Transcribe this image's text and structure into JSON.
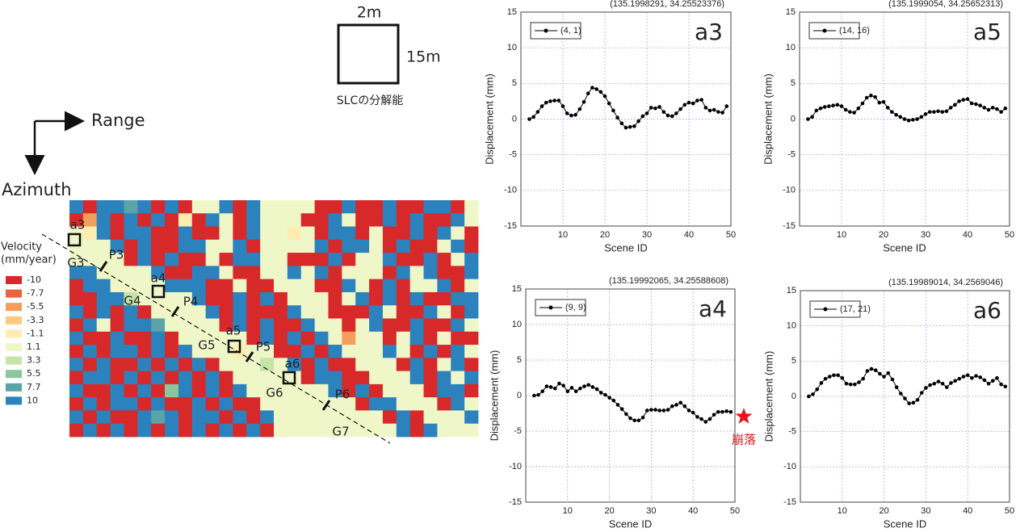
{
  "chart_data": [
    {
      "type": "heatmap",
      "legend_title": [
        "Velocity",
        "(mm/year)"
      ],
      "legend_values": [
        -10,
        -7.7,
        -5.5,
        -3.3,
        -1.1,
        1.1,
        3.3,
        5.5,
        7.7,
        10
      ],
      "colors": [
        "#d7282a",
        "#e8643f",
        "#f59d5a",
        "#fcc981",
        "#fdedb0",
        "#eff6c8",
        "#c6e4a8",
        "#8cc79b",
        "#5aa3a8",
        "#2c82bd"
      ],
      "annotations": {
        "range": "Range",
        "azimuth": "Azimuth",
        "resolution_width": "2m",
        "resolution_height": "15m",
        "resolution_caption": "SLCの分解能",
        "points": [
          "a3",
          "a4",
          "a5",
          "a6"
        ],
        "groups": [
          "G3",
          "G4",
          "G5",
          "G6",
          "G7"
        ],
        "profiles": [
          "P3",
          "P4",
          "P5",
          "P6"
        ]
      },
      "values": [
        [
          10,
          -10,
          10,
          10,
          7.7,
          10,
          -10,
          10,
          -10,
          1.1,
          1.1,
          10,
          -10,
          10,
          1.1,
          1.1,
          1.1,
          1.1,
          -10,
          -10,
          10,
          -10,
          -10,
          10,
          -10,
          -10,
          10,
          10,
          -10,
          1.1
        ],
        [
          -10,
          -5.5,
          10,
          -10,
          10,
          -10,
          10,
          -10,
          -1.1,
          -10,
          10,
          1.1,
          -10,
          10,
          1.1,
          1.1,
          1.1,
          -10,
          -10,
          10,
          1.1,
          -10,
          -10,
          10,
          -10,
          10,
          -10,
          -10,
          10,
          1.1
        ],
        [
          1.1,
          -1.1,
          10,
          -10,
          10,
          10,
          -10,
          -10,
          10,
          -10,
          -10,
          1.1,
          -10,
          10,
          1.1,
          1.1,
          -1.1,
          1.1,
          -10,
          10,
          10,
          -10,
          1.1,
          -10,
          -10,
          10,
          -10,
          10,
          1.1,
          -10
        ],
        [
          1.1,
          1.1,
          1.1,
          10,
          -10,
          10,
          -10,
          -10,
          10,
          10,
          1.1,
          1.1,
          10,
          -10,
          1.1,
          1.1,
          1.1,
          1.1,
          10,
          -10,
          10,
          10,
          1.1,
          -10,
          10,
          -10,
          -10,
          1.1,
          10,
          -10
        ],
        [
          1.1,
          1.1,
          1.1,
          1.1,
          -10,
          10,
          -10,
          10,
          -10,
          -10,
          1.1,
          -10,
          10,
          10,
          1.1,
          1.1,
          -10,
          -10,
          -10,
          10,
          -10,
          1.1,
          1.1,
          10,
          -10,
          -10,
          10,
          -10,
          1.1,
          10
        ],
        [
          10,
          10,
          1.1,
          1.1,
          1.1,
          1.1,
          10,
          -10,
          -10,
          10,
          10,
          1.1,
          -10,
          -10,
          1.1,
          1.1,
          10,
          1.1,
          10,
          -10,
          1.1,
          1.1,
          1.1,
          -10,
          10,
          1.1,
          10,
          -10,
          -10,
          10
        ],
        [
          -10,
          10,
          10,
          1.1,
          1.1,
          1.1,
          1.1,
          10,
          10,
          10,
          -10,
          -10,
          1.1,
          -10,
          -10,
          1.1,
          1.1,
          1.1,
          -10,
          -10,
          10,
          1.1,
          -10,
          10,
          -10,
          1.1,
          1.1,
          10,
          -10,
          1.1
        ],
        [
          -10,
          -10,
          10,
          10,
          3.3,
          1.1,
          1.1,
          1.1,
          1.1,
          10,
          -10,
          -10,
          10,
          -10,
          10,
          -10,
          1.1,
          1.1,
          1.1,
          -10,
          1.1,
          10,
          -10,
          10,
          -10,
          10,
          -10,
          -10,
          10,
          10
        ],
        [
          10,
          -10,
          10,
          -10,
          10,
          -10,
          1.1,
          1.1,
          1.1,
          1.1,
          10,
          -10,
          10,
          -10,
          -10,
          -10,
          10,
          1.1,
          1.1,
          -10,
          -10,
          -10,
          10,
          1.1,
          -10,
          -10,
          10,
          1.1,
          -10,
          10
        ],
        [
          -10,
          10,
          1.1,
          -10,
          10,
          10,
          7.7,
          1.1,
          1.1,
          1.1,
          1.1,
          -10,
          10,
          -10,
          10,
          -10,
          -10,
          10,
          1.1,
          1.1,
          -10,
          1.1,
          10,
          -10,
          -10,
          10,
          -10,
          -10,
          10,
          1.1
        ],
        [
          10,
          -10,
          -10,
          10,
          -10,
          -10,
          10,
          -10,
          1.1,
          1.1,
          1.1,
          1.1,
          1.1,
          -10,
          10,
          -10,
          10,
          -10,
          10,
          1.1,
          -5.5,
          1.1,
          1.1,
          -10,
          1.1,
          10,
          -10,
          1.1,
          -10,
          -10
        ],
        [
          -10,
          10,
          -10,
          10,
          10,
          -10,
          10,
          -10,
          10,
          1.1,
          1.1,
          1.1,
          -1.1,
          1.1,
          1.1,
          -10,
          -10,
          10,
          -10,
          10,
          1.1,
          1.1,
          1.1,
          10,
          1.1,
          -10,
          10,
          -10,
          10,
          1.1
        ],
        [
          10,
          -10,
          10,
          -10,
          -10,
          10,
          -10,
          10,
          -10,
          10,
          -10,
          1.1,
          1.1,
          1.1,
          3.3,
          1.1,
          10,
          -10,
          10,
          -10,
          -10,
          1.1,
          1.1,
          1.1,
          -10,
          10,
          -10,
          1.1,
          10,
          -10
        ],
        [
          -10,
          10,
          10,
          -10,
          10,
          -10,
          10,
          -10,
          10,
          -10,
          10,
          -10,
          1.1,
          1.1,
          1.1,
          1.1,
          1.1,
          -10,
          10,
          10,
          -10,
          -10,
          1.1,
          1.1,
          1.1,
          10,
          -10,
          10,
          1.1,
          10
        ],
        [
          10,
          -10,
          -10,
          10,
          -10,
          10,
          -10,
          5.5,
          10,
          -10,
          10,
          -10,
          10,
          1.1,
          1.1,
          1.1,
          1.1,
          1.1,
          1.1,
          10,
          -10,
          10,
          -10,
          1.1,
          1.1,
          1.1,
          -10,
          10,
          10,
          -10
        ],
        [
          -10,
          10,
          -10,
          10,
          10,
          -10,
          10,
          -10,
          -10,
          10,
          -10,
          10,
          -10,
          -10,
          1.1,
          1.1,
          1.1,
          1.1,
          1.1,
          1.1,
          1.1,
          -10,
          10,
          10,
          1.1,
          1.1,
          1.1,
          -10,
          10,
          1.1
        ],
        [
          10,
          -10,
          10,
          -10,
          -10,
          10,
          7.7,
          10,
          -10,
          10,
          10,
          -10,
          10,
          -10,
          10,
          1.1,
          1.1,
          1.1,
          1.1,
          1.1,
          1.1,
          1.1,
          1.1,
          -10,
          10,
          -10,
          1.1,
          1.1,
          1.1,
          10
        ],
        [
          -10,
          10,
          -10,
          10,
          -10,
          10,
          -10,
          10,
          -10,
          10,
          -10,
          10,
          -10,
          10,
          -10,
          1.1,
          1.1,
          1.1,
          1.1,
          1.1,
          1.1,
          1.1,
          1.1,
          1.1,
          10,
          -10,
          10,
          1.1,
          1.1,
          1.1
        ]
      ]
    },
    {
      "type": "line",
      "subtitle": "(135.1998291, 34.25523376)",
      "panel_label": "a3",
      "xlabel": "Scene ID",
      "ylabel": "Displacement (mm)",
      "xlim": [
        0,
        50
      ],
      "xticks": [
        10,
        20,
        30,
        40,
        50
      ],
      "ylim": [
        -15,
        15
      ],
      "yticks": [
        -15,
        -10,
        -5,
        0,
        5,
        10,
        15
      ],
      "grid": true,
      "x": [
        2,
        3,
        4,
        5,
        6,
        7,
        8,
        9,
        10,
        11,
        12,
        13,
        14,
        15,
        16,
        17,
        18,
        19,
        20,
        21,
        22,
        23,
        24,
        25,
        26,
        27,
        28,
        29,
        30,
        31,
        32,
        33,
        34,
        35,
        36,
        37,
        38,
        39,
        40,
        41,
        42,
        43,
        44,
        45,
        46,
        47,
        48,
        49
      ],
      "series": [
        {
          "name": "(4, 1)",
          "color": "#000000",
          "values": [
            0,
            0.3,
            1,
            1.8,
            2.3,
            2.5,
            2.6,
            2.6,
            1.8,
            0.8,
            0.5,
            0.6,
            1.4,
            2.4,
            3.6,
            4.4,
            4.2,
            3.8,
            3.2,
            2.2,
            1.2,
            0.2,
            -0.6,
            -1.2,
            -1.1,
            -1.0,
            -0.3,
            0.4,
            0.8,
            1.6,
            1.5,
            1.7,
            1.0,
            0.5,
            0.4,
            0.8,
            1.4,
            2.0,
            2.3,
            2.2,
            2.6,
            2.7,
            1.6,
            1.2,
            1.3,
            1.0,
            0.9,
            1.8
          ]
        }
      ]
    },
    {
      "type": "line",
      "subtitle": "(135.1999054, 34.25652313)",
      "panel_label": "a5",
      "xlabel": "Scene ID",
      "ylabel": "Displacement (mm)",
      "xlim": [
        0,
        50
      ],
      "xticks": [
        10,
        20,
        30,
        40,
        50
      ],
      "ylim": [
        -15,
        15
      ],
      "yticks": [
        -15,
        -10,
        -5,
        0,
        5,
        10,
        15
      ],
      "grid": true,
      "x": [
        2,
        3,
        4,
        5,
        6,
        7,
        8,
        9,
        10,
        11,
        12,
        13,
        14,
        15,
        16,
        17,
        18,
        19,
        20,
        21,
        22,
        23,
        24,
        25,
        26,
        27,
        28,
        29,
        30,
        31,
        32,
        33,
        34,
        35,
        36,
        37,
        38,
        39,
        40,
        41,
        42,
        43,
        44,
        45,
        46,
        47,
        48,
        49
      ],
      "series": [
        {
          "name": "(14, 16)",
          "color": "#000000",
          "values": [
            0,
            0.3,
            1.2,
            1.5,
            1.7,
            1.8,
            1.9,
            2.0,
            1.8,
            1.3,
            1.0,
            0.9,
            1.5,
            2.2,
            3.0,
            3.3,
            3.1,
            2.3,
            2.4,
            1.6,
            1.0,
            0.6,
            0.3,
            0,
            -0.2,
            -0.1,
            0,
            0.3,
            0.7,
            1.0,
            1.0,
            1.1,
            1.0,
            1.1,
            1.6,
            2.0,
            2.5,
            2.7,
            2.8,
            2.2,
            2.1,
            1.9,
            1.6,
            1.3,
            1.6,
            1.4,
            1.0,
            1.5
          ]
        }
      ]
    },
    {
      "type": "line",
      "subtitle": "(135.19992065, 34.25588608)",
      "panel_label": "a4",
      "xlabel": "Scene ID",
      "ylabel": "Displacement (mm)",
      "annotation": "崩落",
      "xlim": [
        0,
        50
      ],
      "xticks": [
        10,
        20,
        30,
        40,
        50
      ],
      "ylim": [
        -15,
        15
      ],
      "yticks": [
        -15,
        -10,
        -5,
        0,
        5,
        10,
        15
      ],
      "grid": true,
      "x": [
        2,
        3,
        4,
        5,
        6,
        7,
        8,
        9,
        10,
        11,
        12,
        13,
        14,
        15,
        16,
        17,
        18,
        19,
        20,
        21,
        22,
        23,
        24,
        25,
        26,
        27,
        28,
        29,
        30,
        31,
        32,
        33,
        34,
        35,
        36,
        37,
        38,
        39,
        40,
        41,
        42,
        43,
        44,
        45,
        46,
        47,
        48,
        49
      ],
      "series": [
        {
          "name": "(9, 9)",
          "color": "#000000",
          "values": [
            0,
            0.1,
            0.6,
            1.3,
            1.2,
            1.0,
            1.7,
            1.4,
            0.6,
            1.1,
            0.6,
            1.0,
            1.3,
            1.5,
            1.2,
            0.9,
            0.4,
            0.1,
            -0.3,
            -0.7,
            -1.3,
            -1.9,
            -2.6,
            -3.2,
            -3.5,
            -3.5,
            -3.1,
            -2.1,
            -2.0,
            -2.0,
            -2.1,
            -2.1,
            -2.0,
            -1.5,
            -1.3,
            -1.0,
            -1.5,
            -2.1,
            -2.4,
            -3.0,
            -3.3,
            -3.7,
            -3.3,
            -2.7,
            -2.3,
            -2.3,
            -2.2,
            -2.3
          ]
        }
      ]
    },
    {
      "type": "line",
      "subtitle": "(135.19989014, 34.2569046)",
      "panel_label": "a6",
      "xlabel": "Scene ID",
      "ylabel": "Displacement (mm)",
      "xlim": [
        0,
        50
      ],
      "xticks": [
        10,
        20,
        30,
        40,
        50
      ],
      "ylim": [
        -15,
        15
      ],
      "yticks": [
        -15,
        -10,
        -5,
        0,
        5,
        10,
        15
      ],
      "grid": true,
      "x": [
        2,
        3,
        4,
        5,
        6,
        7,
        8,
        9,
        10,
        11,
        12,
        13,
        14,
        15,
        16,
        17,
        18,
        19,
        20,
        21,
        22,
        23,
        24,
        25,
        26,
        27,
        28,
        29,
        30,
        31,
        32,
        33,
        34,
        35,
        36,
        37,
        38,
        39,
        40,
        41,
        42,
        43,
        44,
        45,
        46,
        47,
        48,
        49
      ],
      "series": [
        {
          "name": "(17, 21)",
          "color": "#000000",
          "values": [
            0,
            0.3,
            1.0,
            1.9,
            2.5,
            2.8,
            3.0,
            3.0,
            2.6,
            1.8,
            1.7,
            1.7,
            2.0,
            2.5,
            3.6,
            3.9,
            3.7,
            3.2,
            2.8,
            3.3,
            2.4,
            1.3,
            0.4,
            -0.3,
            -1.0,
            -0.9,
            -0.5,
            0.5,
            1.2,
            1.6,
            1.8,
            2.1,
            1.8,
            1.3,
            1.9,
            2.2,
            2.5,
            2.8,
            3.0,
            2.6,
            2.9,
            2.7,
            2.3,
            1.8,
            2.2,
            2.6,
            1.7,
            1.4
          ]
        }
      ]
    }
  ]
}
